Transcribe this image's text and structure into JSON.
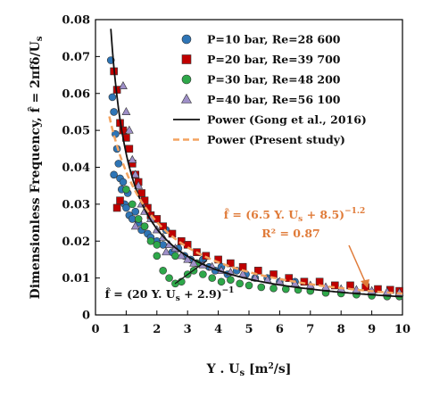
{
  "chart_data": {
    "type": "scatter",
    "title": "",
    "xlabel": "Y . U_s [m²/s]",
    "ylabel": "Dimensionless Frequency, f̂ = 2πfδ/U_s",
    "xlim": [
      0,
      10
    ],
    "ylim": [
      0,
      0.08
    ],
    "x_ticks": [
      "0",
      "1",
      "2",
      "3",
      "4",
      "5",
      "6",
      "7",
      "8",
      "9",
      "10"
    ],
    "y_ticks": [
      "0",
      "0.01",
      "0.02",
      "0.03",
      "0.04",
      "0.05",
      "0.06",
      "0.07",
      "0.08"
    ],
    "grid": false,
    "legend_position": "top-right",
    "series": [
      {
        "name": "P=10 bar, Re=28 600",
        "marker": "circle",
        "color": "#2E75B6",
        "points": [
          [
            0.5,
            0.069
          ],
          [
            0.55,
            0.059
          ],
          [
            0.6,
            0.055
          ],
          [
            0.65,
            0.049
          ],
          [
            0.7,
            0.045
          ],
          [
            0.6,
            0.038
          ],
          [
            0.75,
            0.041
          ],
          [
            0.8,
            0.037
          ],
          [
            0.85,
            0.034
          ],
          [
            0.9,
            0.036
          ],
          [
            0.95,
            0.03
          ],
          [
            1.0,
            0.029
          ],
          [
            1.05,
            0.033
          ],
          [
            1.1,
            0.027
          ],
          [
            1.2,
            0.026
          ],
          [
            1.3,
            0.028
          ],
          [
            1.4,
            0.025
          ],
          [
            1.5,
            0.023
          ],
          [
            1.6,
            0.024
          ],
          [
            1.7,
            0.022
          ],
          [
            1.8,
            0.021
          ],
          [
            2.0,
            0.02
          ],
          [
            2.2,
            0.019
          ],
          [
            2.3,
            0.023
          ],
          [
            2.5,
            0.017
          ],
          [
            2.7,
            0.018
          ],
          [
            2.9,
            0.016
          ],
          [
            3.1,
            0.015
          ],
          [
            3.3,
            0.014
          ],
          [
            3.5,
            0.015
          ],
          [
            3.7,
            0.013
          ],
          [
            3.9,
            0.012
          ],
          [
            4.1,
            0.013
          ],
          [
            4.3,
            0.011
          ],
          [
            4.6,
            0.012
          ],
          [
            4.9,
            0.011
          ],
          [
            5.2,
            0.01
          ],
          [
            5.6,
            0.01
          ],
          [
            6.0,
            0.009
          ],
          [
            6.5,
            0.009
          ]
        ]
      },
      {
        "name": "P=20 bar, Re=39 700",
        "marker": "square",
        "color": "#C00000",
        "points": [
          [
            0.6,
            0.066
          ],
          [
            0.7,
            0.061
          ],
          [
            0.8,
            0.052
          ],
          [
            0.9,
            0.05
          ],
          [
            1.0,
            0.048
          ],
          [
            1.1,
            0.045
          ],
          [
            0.7,
            0.029
          ],
          [
            0.8,
            0.031
          ],
          [
            1.2,
            0.041
          ],
          [
            1.3,
            0.038
          ],
          [
            1.4,
            0.036
          ],
          [
            1.5,
            0.033
          ],
          [
            1.6,
            0.031
          ],
          [
            1.7,
            0.029
          ],
          [
            1.8,
            0.027
          ],
          [
            2.0,
            0.026
          ],
          [
            2.2,
            0.024
          ],
          [
            2.5,
            0.022
          ],
          [
            2.8,
            0.02
          ],
          [
            3.0,
            0.019
          ],
          [
            3.3,
            0.017
          ],
          [
            3.6,
            0.016
          ],
          [
            4.0,
            0.015
          ],
          [
            4.4,
            0.014
          ],
          [
            4.8,
            0.013
          ],
          [
            5.3,
            0.012
          ],
          [
            5.8,
            0.011
          ],
          [
            6.3,
            0.01
          ],
          [
            6.8,
            0.009
          ],
          [
            7.3,
            0.009
          ],
          [
            7.8,
            0.008
          ],
          [
            8.3,
            0.008
          ],
          [
            8.8,
            0.0075
          ],
          [
            9.2,
            0.007
          ],
          [
            9.6,
            0.0068
          ],
          [
            9.9,
            0.0065
          ]
        ]
      },
      {
        "name": "P=30 bar, Re=48 200",
        "marker": "circle",
        "color": "#2EA84A",
        "points": [
          [
            1.0,
            0.034
          ],
          [
            1.2,
            0.03
          ],
          [
            1.4,
            0.026
          ],
          [
            1.6,
            0.024
          ],
          [
            1.8,
            0.02
          ],
          [
            2.0,
            0.016
          ],
          [
            2.2,
            0.012
          ],
          [
            2.4,
            0.01
          ],
          [
            2.6,
            0.0085
          ],
          [
            2.8,
            0.009
          ],
          [
            3.0,
            0.011
          ],
          [
            3.2,
            0.012
          ],
          [
            3.5,
            0.011
          ],
          [
            3.8,
            0.01
          ],
          [
            4.1,
            0.009
          ],
          [
            4.4,
            0.0095
          ],
          [
            4.7,
            0.0085
          ],
          [
            5.0,
            0.008
          ],
          [
            5.4,
            0.0075
          ],
          [
            5.8,
            0.0072
          ],
          [
            6.2,
            0.007
          ],
          [
            6.6,
            0.0068
          ],
          [
            7.0,
            0.0065
          ],
          [
            7.5,
            0.006
          ],
          [
            8.0,
            0.0058
          ],
          [
            8.5,
            0.0055
          ],
          [
            9.0,
            0.0052
          ],
          [
            9.5,
            0.005
          ],
          [
            9.9,
            0.005
          ],
          [
            2.0,
            0.019
          ],
          [
            2.6,
            0.016
          ],
          [
            3.3,
            0.014
          ]
        ]
      },
      {
        "name": "P=40 bar, Re=56 100",
        "marker": "triangle",
        "color": "#9E8FC8",
        "points": [
          [
            0.9,
            0.062
          ],
          [
            1.0,
            0.055
          ],
          [
            1.1,
            0.05
          ],
          [
            1.2,
            0.042
          ],
          [
            1.3,
            0.038
          ],
          [
            1.4,
            0.035
          ],
          [
            1.5,
            0.03
          ],
          [
            1.6,
            0.028
          ],
          [
            1.8,
            0.026
          ],
          [
            2.0,
            0.023
          ],
          [
            2.2,
            0.021
          ],
          [
            2.4,
            0.019
          ],
          [
            2.6,
            0.018
          ],
          [
            2.8,
            0.016
          ],
          [
            3.0,
            0.015
          ],
          [
            3.2,
            0.014
          ],
          [
            3.5,
            0.0135
          ],
          [
            3.8,
            0.013
          ],
          [
            4.1,
            0.012
          ],
          [
            4.4,
            0.0115
          ],
          [
            4.8,
            0.011
          ],
          [
            5.2,
            0.01
          ],
          [
            5.6,
            0.0095
          ],
          [
            6.0,
            0.009
          ],
          [
            6.5,
            0.0085
          ],
          [
            7.0,
            0.008
          ],
          [
            7.5,
            0.0075
          ],
          [
            8.0,
            0.007
          ],
          [
            8.5,
            0.0068
          ],
          [
            9.0,
            0.0065
          ],
          [
            9.5,
            0.0062
          ],
          [
            9.9,
            0.006
          ],
          [
            1.3,
            0.024
          ],
          [
            2.3,
            0.017
          ]
        ]
      },
      {
        "name": "Power (Gong et al., 2016)",
        "marker": "line",
        "color": "#111111",
        "equation": "f̂ = (20 Y.U_s + 2.9)^-1",
        "coef_a": 20,
        "coef_b": 2.9,
        "exponent": -1
      },
      {
        "name": "Power (Present study)",
        "marker": "dashed-line",
        "color": "#F4A460",
        "equation": "f̂ = (6.5 Y.U_s + 8.5)^-1.2",
        "coef_a": 6.5,
        "coef_b": 8.5,
        "exponent": -1.2
      }
    ],
    "annotations": {
      "present_equation": "f̂ = (6.5 Y. U_s + 8.5)^-1.2",
      "present_r2": "R² = 0.87",
      "gong_equation": "f̂ = (20 Y. U_s + 2.9)^-1"
    }
  }
}
